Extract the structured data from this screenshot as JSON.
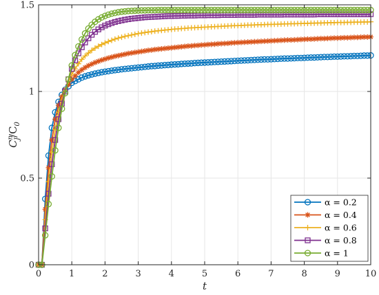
{
  "chart_data": {
    "type": "line",
    "title": "",
    "xlabel": "t",
    "ylabel_main": "C",
    "ylabel_sup": "n",
    "ylabel_sub": "J",
    "ylabel_den": "/C",
    "ylabel_den_sub": "0",
    "xlim": [
      0,
      10
    ],
    "ylim": [
      0,
      1.5
    ],
    "xticks": [
      "0",
      "1",
      "2",
      "3",
      "4",
      "5",
      "6",
      "7",
      "8",
      "9",
      "10"
    ],
    "yticks": [
      "0",
      "0.5",
      "1",
      "1.5"
    ],
    "grid": true,
    "legend_position": "bottom-right",
    "x": [
      0,
      0.1,
      0.2,
      0.3,
      0.4,
      0.5,
      0.6,
      0.7,
      0.8,
      0.9,
      1.0,
      1.1,
      1.2,
      1.3,
      1.4,
      1.5,
      1.6,
      1.7,
      1.8,
      1.9,
      2.0,
      2.1,
      2.2,
      2.3,
      2.4,
      2.5,
      2.6,
      2.7,
      2.8,
      2.9,
      3.0,
      3.1,
      3.2,
      3.3,
      3.4,
      3.5,
      3.6,
      3.7,
      3.8,
      3.9,
      4.0,
      4.1,
      4.2,
      4.3,
      4.4,
      4.5,
      4.6,
      4.7,
      4.8,
      4.9,
      5.0,
      5.1,
      5.2,
      5.3,
      5.4,
      5.5,
      5.6,
      5.7,
      5.8,
      5.9,
      6.0,
      6.1,
      6.2,
      6.3,
      6.4,
      6.5,
      6.6,
      6.7,
      6.8,
      6.9,
      7.0,
      7.1,
      7.2,
      7.3,
      7.4,
      7.5,
      7.6,
      7.7,
      7.8,
      7.9,
      8.0,
      8.1,
      8.2,
      8.3,
      8.4,
      8.5,
      8.6,
      8.7,
      8.8,
      8.9,
      9.0,
      9.1,
      9.2,
      9.3,
      9.4,
      9.5,
      9.6,
      9.7,
      9.8,
      9.9,
      10.0
    ],
    "series": [
      {
        "name": "α = 0.2",
        "color": "#0072BD",
        "marker": "circle",
        "values": [
          0,
          0,
          0.38,
          0.63,
          0.79,
          0.88,
          0.94,
          0.98,
          1.01,
          1.03,
          1.05,
          1.06,
          1.07,
          1.08,
          1.087,
          1.093,
          1.098,
          1.103,
          1.107,
          1.111,
          1.114,
          1.117,
          1.12,
          1.123,
          1.125,
          1.128,
          1.13,
          1.132,
          1.134,
          1.136,
          1.138,
          1.14,
          1.142,
          1.144,
          1.146,
          1.147,
          1.149,
          1.15,
          1.152,
          1.153,
          1.155,
          1.156,
          1.157,
          1.159,
          1.16,
          1.161,
          1.162,
          1.164,
          1.165,
          1.166,
          1.167,
          1.168,
          1.169,
          1.17,
          1.171,
          1.172,
          1.173,
          1.174,
          1.175,
          1.176,
          1.177,
          1.178,
          1.179,
          1.18,
          1.181,
          1.182,
          1.183,
          1.184,
          1.185,
          1.185,
          1.186,
          1.187,
          1.188,
          1.189,
          1.19,
          1.19,
          1.191,
          1.192,
          1.193,
          1.193,
          1.194,
          1.195,
          1.196,
          1.196,
          1.197,
          1.198,
          1.199,
          1.199,
          1.2,
          1.201,
          1.201,
          1.202,
          1.203,
          1.203,
          1.204,
          1.205,
          1.205,
          1.206,
          1.207,
          1.207,
          1.208
        ]
      },
      {
        "name": "α = 0.4",
        "color": "#D95319",
        "marker": "asterisk",
        "values": [
          0,
          0,
          0.32,
          0.56,
          0.72,
          0.84,
          0.92,
          0.97,
          1.01,
          1.04,
          1.07,
          1.09,
          1.11,
          1.125,
          1.138,
          1.149,
          1.158,
          1.167,
          1.174,
          1.181,
          1.187,
          1.193,
          1.198,
          1.203,
          1.207,
          1.211,
          1.215,
          1.219,
          1.222,
          1.225,
          1.228,
          1.231,
          1.234,
          1.237,
          1.239,
          1.242,
          1.244,
          1.246,
          1.248,
          1.25,
          1.252,
          1.254,
          1.256,
          1.258,
          1.26,
          1.262,
          1.263,
          1.265,
          1.266,
          1.268,
          1.269,
          1.271,
          1.272,
          1.273,
          1.275,
          1.276,
          1.277,
          1.278,
          1.28,
          1.281,
          1.282,
          1.283,
          1.284,
          1.285,
          1.286,
          1.287,
          1.288,
          1.289,
          1.29,
          1.291,
          1.292,
          1.293,
          1.294,
          1.295,
          1.296,
          1.297,
          1.297,
          1.298,
          1.299,
          1.3,
          1.301,
          1.302,
          1.302,
          1.303,
          1.304,
          1.305,
          1.305,
          1.306,
          1.307,
          1.308,
          1.308,
          1.309,
          1.31,
          1.31,
          1.311,
          1.312,
          1.312,
          1.313,
          1.314,
          1.314,
          1.315
        ]
      },
      {
        "name": "α = 0.6",
        "color": "#EDB120",
        "marker": "plus",
        "values": [
          0,
          0,
          0.26,
          0.48,
          0.65,
          0.78,
          0.88,
          0.95,
          1.01,
          1.06,
          1.1,
          1.13,
          1.16,
          1.185,
          1.205,
          1.222,
          1.237,
          1.25,
          1.261,
          1.271,
          1.28,
          1.288,
          1.295,
          1.302,
          1.308,
          1.313,
          1.318,
          1.322,
          1.326,
          1.33,
          1.334,
          1.337,
          1.34,
          1.343,
          1.345,
          1.348,
          1.35,
          1.352,
          1.354,
          1.356,
          1.358,
          1.36,
          1.361,
          1.363,
          1.364,
          1.366,
          1.367,
          1.368,
          1.369,
          1.37,
          1.371,
          1.372,
          1.373,
          1.374,
          1.375,
          1.376,
          1.377,
          1.378,
          1.379,
          1.38,
          1.38,
          1.381,
          1.382,
          1.383,
          1.383,
          1.384,
          1.385,
          1.385,
          1.386,
          1.387,
          1.387,
          1.388,
          1.388,
          1.389,
          1.39,
          1.39,
          1.391,
          1.391,
          1.392,
          1.392,
          1.393,
          1.393,
          1.394,
          1.394,
          1.395,
          1.395,
          1.396,
          1.396,
          1.397,
          1.397,
          1.398,
          1.398,
          1.398,
          1.399,
          1.399,
          1.4,
          1.4,
          1.4,
          1.401,
          1.401,
          1.402
        ]
      },
      {
        "name": "α = 0.8",
        "color": "#7E2F8E",
        "marker": "square",
        "values": [
          0,
          0,
          0.21,
          0.41,
          0.58,
          0.72,
          0.84,
          0.93,
          1.0,
          1.07,
          1.13,
          1.18,
          1.22,
          1.255,
          1.283,
          1.307,
          1.327,
          1.344,
          1.358,
          1.37,
          1.38,
          1.388,
          1.395,
          1.401,
          1.406,
          1.41,
          1.414,
          1.417,
          1.42,
          1.422,
          1.424,
          1.426,
          1.428,
          1.429,
          1.43,
          1.431,
          1.432,
          1.433,
          1.434,
          1.435,
          1.435,
          1.436,
          1.436,
          1.437,
          1.437,
          1.438,
          1.438,
          1.438,
          1.439,
          1.439,
          1.439,
          1.44,
          1.44,
          1.44,
          1.44,
          1.441,
          1.441,
          1.441,
          1.441,
          1.441,
          1.442,
          1.442,
          1.442,
          1.442,
          1.442,
          1.442,
          1.443,
          1.443,
          1.443,
          1.443,
          1.443,
          1.443,
          1.443,
          1.443,
          1.444,
          1.444,
          1.444,
          1.444,
          1.444,
          1.444,
          1.444,
          1.444,
          1.444,
          1.444,
          1.445,
          1.445,
          1.445,
          1.445,
          1.445,
          1.445,
          1.445,
          1.445,
          1.445,
          1.445,
          1.445,
          1.445,
          1.445,
          1.445,
          1.445,
          1.445,
          1.446
        ]
      },
      {
        "name": "α = 1",
        "color": "#77AC30",
        "marker": "circle",
        "values": [
          0,
          0,
          0.17,
          0.35,
          0.51,
          0.66,
          0.79,
          0.9,
          0.99,
          1.07,
          1.15,
          1.21,
          1.26,
          1.3,
          1.335,
          1.363,
          1.385,
          1.402,
          1.416,
          1.427,
          1.436,
          1.443,
          1.449,
          1.453,
          1.457,
          1.46,
          1.462,
          1.464,
          1.465,
          1.466,
          1.467,
          1.468,
          1.468,
          1.469,
          1.469,
          1.469,
          1.47,
          1.47,
          1.47,
          1.47,
          1.47,
          1.47,
          1.47,
          1.47,
          1.47,
          1.47,
          1.47,
          1.47,
          1.47,
          1.47,
          1.47,
          1.47,
          1.47,
          1.47,
          1.47,
          1.47,
          1.47,
          1.47,
          1.47,
          1.47,
          1.47,
          1.47,
          1.47,
          1.47,
          1.47,
          1.47,
          1.47,
          1.47,
          1.47,
          1.47,
          1.47,
          1.47,
          1.47,
          1.47,
          1.47,
          1.47,
          1.47,
          1.47,
          1.47,
          1.47,
          1.47,
          1.47,
          1.47,
          1.47,
          1.47,
          1.47,
          1.47,
          1.47,
          1.47,
          1.47,
          1.47,
          1.47,
          1.47,
          1.47,
          1.47,
          1.47,
          1.47,
          1.47,
          1.47,
          1.47,
          1.47
        ]
      }
    ]
  }
}
